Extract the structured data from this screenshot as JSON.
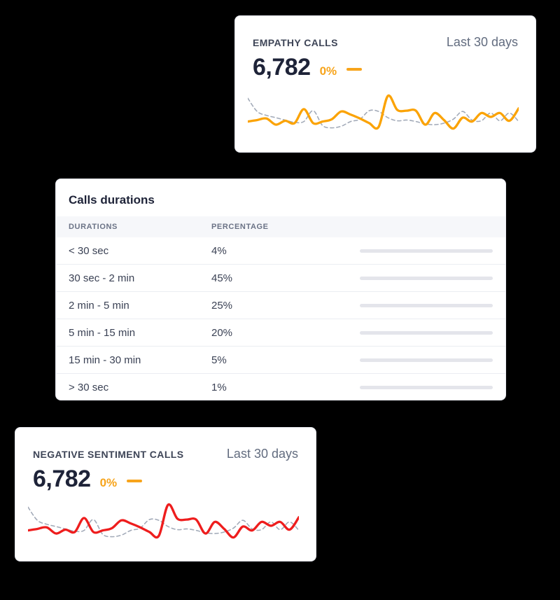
{
  "colors": {
    "background": "#000000",
    "card": "#ffffff",
    "accent_orange": "#f7a41b",
    "line_orange": "#fba305",
    "line_red": "#ee1d1d",
    "line_previous_gray": "#a2aab8",
    "bar_fill_indigo": "#393ec1",
    "bar_track_gray": "#e4e5eb",
    "value_dark": "#1e2338"
  },
  "cards": {
    "empathy": {
      "title": "EMPATHY CALLS",
      "period": "Last 30 days",
      "value": "6,782",
      "delta": "0%",
      "trend_icon": "flat-dash"
    },
    "negative": {
      "title": "NEGATIVE SENTIMENT CALLS",
      "period": "Last 30 days",
      "value": "6,782",
      "delta": "0%",
      "trend_icon": "flat-dash"
    },
    "durations": {
      "title": "Calls durations",
      "columns": {
        "0": "DURATIONS",
        "1": "PERCENTAGE"
      },
      "rows": [
        {
          "label": "< 30 sec",
          "pct_label": "4%",
          "pct": 4
        },
        {
          "label": "30 sec - 2 min",
          "pct_label": "45%",
          "pct": 45
        },
        {
          "label": "2 min - 5 min",
          "pct_label": "25%",
          "pct": 25
        },
        {
          "label": "5 min - 15 min",
          "pct_label": "20%",
          "pct": 20
        },
        {
          "label": "15 min - 30 min",
          "pct_label": "5%",
          "pct": 5
        },
        {
          "label": "> 30 sec",
          "pct_label": "1%",
          "pct": 1
        }
      ]
    }
  },
  "chart_data": [
    {
      "id": "empathy-trend",
      "type": "line",
      "title": "EMPATHY CALLS — Last 30 days sparkline",
      "x": [
        1,
        2,
        3,
        4,
        5,
        6,
        7,
        8,
        9,
        10,
        11,
        12,
        13,
        14,
        15,
        16,
        17,
        18,
        19,
        20,
        21,
        22,
        23,
        24,
        25,
        26,
        27,
        28,
        29,
        30
      ],
      "series": [
        {
          "name": "current",
          "style": "solid",
          "color": "#fba305",
          "values": [
            13,
            15,
            17,
            9,
            14,
            11,
            29,
            11,
            13,
            16,
            26,
            22,
            17,
            11,
            6,
            46,
            28,
            27,
            27,
            9,
            24,
            15,
            4,
            18,
            13,
            24,
            19,
            24,
            14,
            30
          ]
        },
        {
          "name": "previous",
          "style": "dashed",
          "color": "#a2aab8",
          "values": [
            43,
            26,
            21,
            18,
            15,
            12,
            13,
            27,
            8,
            5,
            7,
            13,
            16,
            27,
            26,
            18,
            14,
            15,
            13,
            10,
            9,
            11,
            16,
            26,
            15,
            14,
            24,
            14,
            24,
            13
          ]
        }
      ],
      "ylim": [
        0,
        50
      ],
      "axes_hidden": true,
      "grid": false,
      "legend": "none"
    },
    {
      "id": "negative-sentiment-trend",
      "type": "line",
      "title": "NEGATIVE SENTIMENT CALLS — Last 30 days sparkline",
      "x": [
        1,
        2,
        3,
        4,
        5,
        6,
        7,
        8,
        9,
        10,
        11,
        12,
        13,
        14,
        15,
        16,
        17,
        18,
        19,
        20,
        21,
        22,
        23,
        24,
        25,
        26,
        27,
        28,
        29,
        30
      ],
      "series": [
        {
          "name": "current",
          "style": "solid",
          "color": "#ee1d1d",
          "values": [
            13,
            15,
            17,
            9,
            14,
            11,
            29,
            11,
            13,
            16,
            26,
            22,
            17,
            11,
            6,
            46,
            28,
            27,
            27,
            9,
            24,
            15,
            4,
            18,
            13,
            24,
            19,
            24,
            14,
            30
          ]
        },
        {
          "name": "previous",
          "style": "dashed",
          "color": "#a2aab8",
          "values": [
            43,
            26,
            21,
            18,
            15,
            12,
            13,
            27,
            8,
            5,
            7,
            13,
            16,
            27,
            26,
            18,
            14,
            15,
            13,
            10,
            9,
            11,
            16,
            26,
            15,
            14,
            24,
            14,
            24,
            13
          ]
        }
      ],
      "ylim": [
        0,
        50
      ],
      "axes_hidden": true,
      "grid": false,
      "legend": "none"
    }
  ]
}
